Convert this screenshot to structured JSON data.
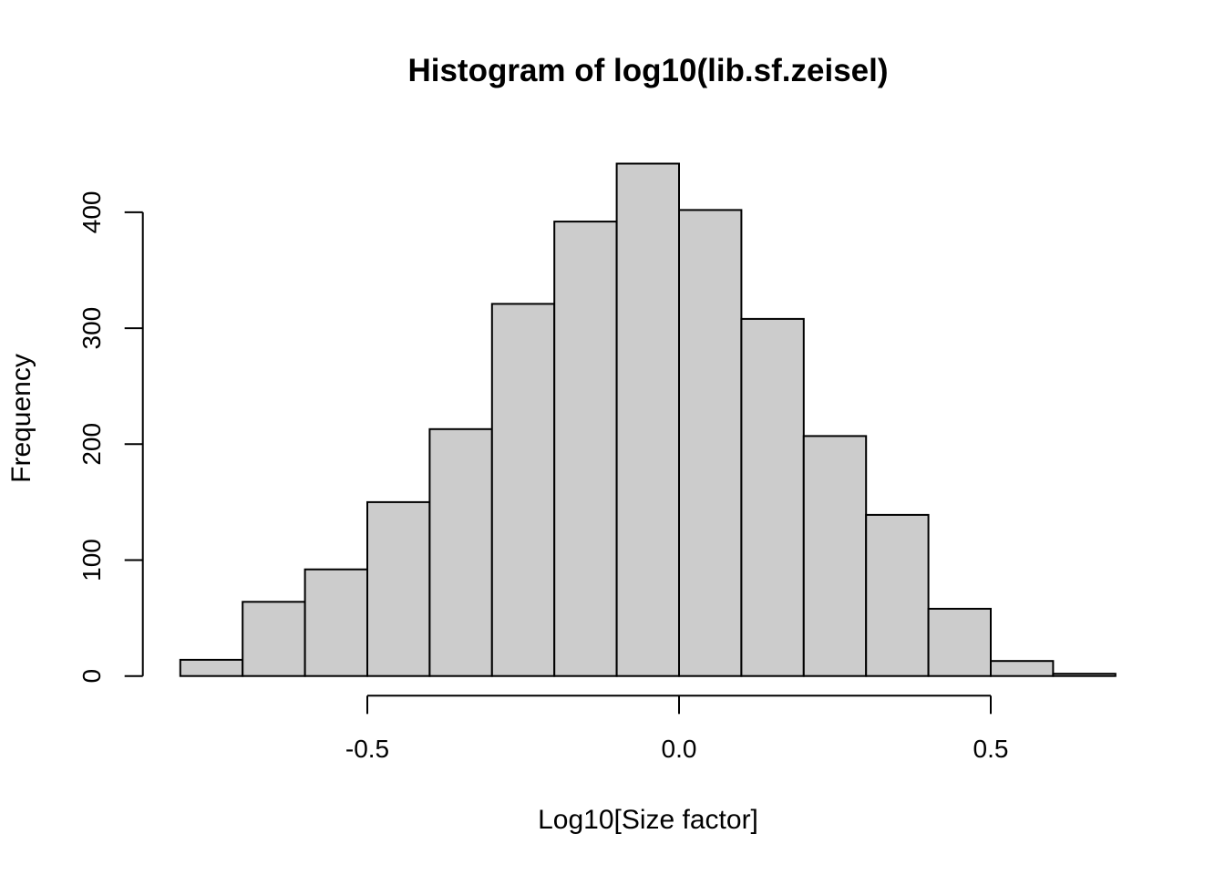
{
  "chart_data": {
    "type": "bar",
    "subtype": "histogram",
    "title": "Histogram of log10(lib.sf.zeisel)",
    "xlabel": "Log10[Size factor]",
    "ylabel": "Frequency",
    "bin_start": -0.8,
    "bin_width": 0.1,
    "bin_edges": [
      -0.8,
      -0.7,
      -0.6,
      -0.5,
      -0.4,
      -0.3,
      -0.2,
      -0.1,
      0.0,
      0.1,
      0.2,
      0.3,
      0.4,
      0.5,
      0.6,
      0.7
    ],
    "counts": [
      14,
      64,
      92,
      150,
      213,
      321,
      392,
      442,
      402,
      308,
      207,
      139,
      58,
      13,
      2
    ],
    "x_ticks": {
      "values": [
        -0.5,
        0.0,
        0.5
      ],
      "labels": [
        "-0.5",
        "0.0",
        "0.5"
      ]
    },
    "y_ticks": {
      "values": [
        0,
        100,
        200,
        300,
        400
      ],
      "labels": [
        "0",
        "100",
        "200",
        "300",
        "400"
      ]
    },
    "xlim": [
      -0.86,
      0.76
    ],
    "ylim": [
      0,
      442
    ],
    "grid": false,
    "legend": "none",
    "colors": {
      "bar_fill": "#CCCCCC",
      "bar_stroke": "#000000",
      "axis": "#000000",
      "text": "#000000",
      "background": "#FFFFFF"
    }
  }
}
